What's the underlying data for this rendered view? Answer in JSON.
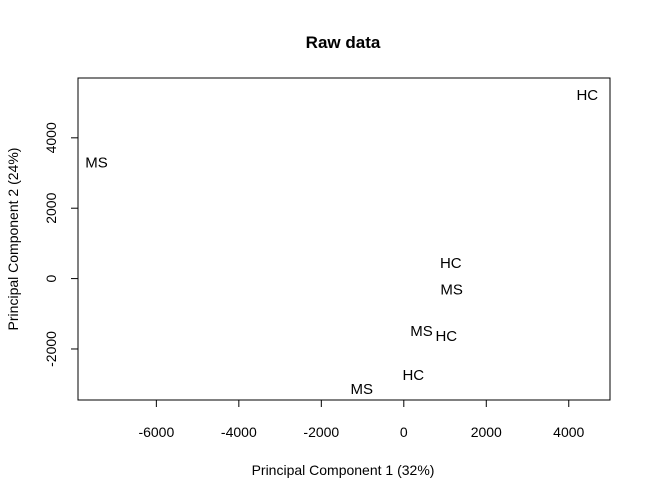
{
  "chart_data": {
    "type": "scatter",
    "title": "Raw data",
    "xlabel": "Principal Component 1 (32%)",
    "ylabel": "Principal Component 2 (24%)",
    "xlim": [
      -7900,
      5000
    ],
    "ylim": [
      -3450,
      5700
    ],
    "xticks": [
      -6000,
      -4000,
      -2000,
      0,
      2000,
      4000
    ],
    "yticks": [
      -2000,
      0,
      2000,
      4000
    ],
    "xtick_labels": [
      "-6000",
      "-4000",
      "-2000",
      "0",
      "2000",
      "4000"
    ],
    "ytick_labels": [
      "-2000",
      "0",
      "2000",
      "4000"
    ],
    "grid": false,
    "points": [
      {
        "label": "HC",
        "x": 4450,
        "y": 5200
      },
      {
        "label": "MS",
        "x": -7450,
        "y": 3280
      },
      {
        "label": "HC",
        "x": 1140,
        "y": 430
      },
      {
        "label": "MS",
        "x": 1160,
        "y": -320
      },
      {
        "label": "MS",
        "x": 430,
        "y": -1500
      },
      {
        "label": "HC",
        "x": 1030,
        "y": -1650
      },
      {
        "label": "HC",
        "x": 230,
        "y": -2750
      },
      {
        "label": "MS",
        "x": -1020,
        "y": -3150
      }
    ]
  }
}
